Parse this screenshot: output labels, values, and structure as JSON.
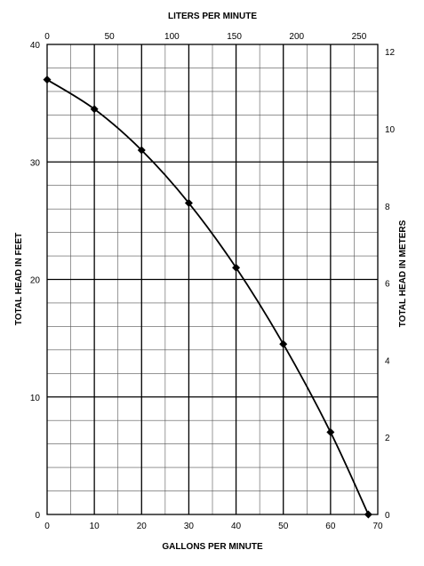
{
  "chart_data": {
    "type": "line",
    "xlabel": "GALLONS PER MINUTE",
    "ylabel": "TOTAL HEAD IN FEET",
    "x2label": "LITERS PER MINUTE",
    "y2label": "TOTAL HEAD IN METERS",
    "xlim": [
      0,
      70
    ],
    "ylim": [
      0,
      40
    ],
    "x2lim": [
      0,
      265
    ],
    "y2lim": [
      0,
      12.19
    ],
    "x_ticks": [
      0,
      10,
      20,
      30,
      40,
      50,
      60,
      70
    ],
    "y_ticks": [
      0,
      10,
      20,
      30,
      40
    ],
    "x2_ticks": [
      0,
      50,
      100,
      150,
      200,
      250
    ],
    "y2_ticks": [
      0,
      2,
      4,
      6,
      8,
      10,
      12
    ],
    "x_minor_step": 5,
    "y_minor_step": 2,
    "grid": true,
    "series": [
      {
        "x": [
          0,
          10,
          20,
          30,
          40,
          50,
          60,
          68
        ],
        "y": [
          37,
          34.5,
          31,
          26.5,
          21,
          14.5,
          7,
          0
        ]
      }
    ],
    "colors": {
      "line": "#000000",
      "marker": "#000000",
      "major_grid": "#000000",
      "minor_grid": "#555555"
    }
  }
}
